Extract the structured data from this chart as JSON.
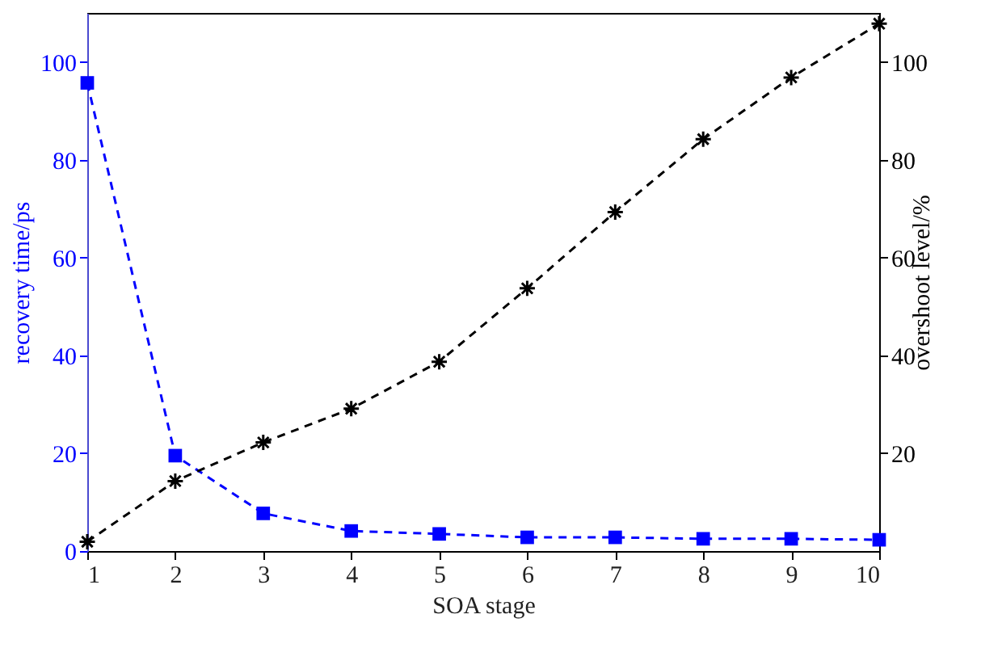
{
  "chart_data": {
    "type": "line",
    "xlabel": "SOA stage",
    "ylabel": "recovery time/ps",
    "y2label": "overshoot level/%",
    "x": [
      1,
      2,
      3,
      4,
      5,
      6,
      7,
      8,
      9,
      10
    ],
    "xlim": [
      1,
      10
    ],
    "xticks": [
      1,
      2,
      3,
      4,
      5,
      6,
      7,
      8,
      9,
      10
    ],
    "ylim": [
      0,
      110
    ],
    "yticks": [
      0,
      20,
      40,
      60,
      80,
      100
    ],
    "y2lim": [
      0,
      110
    ],
    "y2ticks": [
      20,
      40,
      60,
      80,
      100
    ],
    "line_style": "dashed",
    "grid": false,
    "series": [
      {
        "color": "#0000ff",
        "marker": "square",
        "values": [
          95.7,
          19.5,
          7.7,
          4.1,
          3.5,
          2.8,
          2.8,
          2.5,
          2.5,
          2.3
        ]
      },
      {
        "color": "#000000",
        "marker": "cross",
        "axis": "y2",
        "values": [
          1.9,
          14.3,
          22.2,
          29.1,
          38.7,
          53.7,
          69.3,
          84.2,
          96.8,
          107.8
        ]
      }
    ]
  }
}
